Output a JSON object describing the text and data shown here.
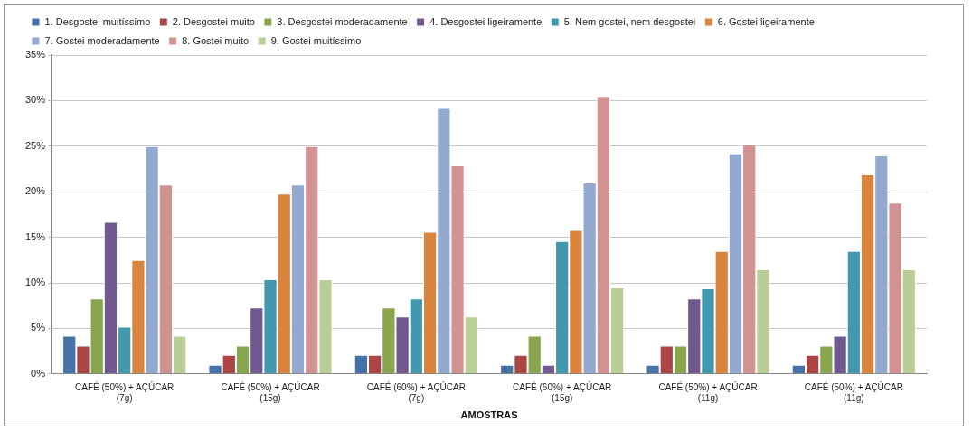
{
  "chart_data": {
    "type": "bar",
    "xlabel": "AMOSTRAS",
    "categories": [
      "CAFÉ (50%) + AÇÚCAR\n(7g)",
      "CAFÉ (50%) + AÇÚCAR\n(15g)",
      "CAFÉ (60%) + AÇÚCAR\n(7g)",
      "CAFÉ (60%) + AÇÚCAR\n(15g)",
      "CAFÉ (50%) + AÇÚCAR\n(11g)",
      "CAFÉ (50%) + AÇÚCAR\n(11g)"
    ],
    "series": [
      {
        "name": "1. Desgostei muitíssimo",
        "color": "#4572a7",
        "values": [
          4.2,
          1.0,
          2.1,
          1.0,
          1.0,
          1.0
        ]
      },
      {
        "name": "2. Desgostei muito",
        "color": "#aa4643",
        "values": [
          3.1,
          2.1,
          2.1,
          2.1,
          3.1,
          2.1
        ]
      },
      {
        "name": "3. Desgostei moderadamente",
        "color": "#89a54e",
        "values": [
          8.3,
          3.1,
          7.3,
          4.2,
          3.1,
          3.1
        ]
      },
      {
        "name": "4. Desgostei ligeiramente",
        "color": "#71588f",
        "values": [
          16.7,
          7.3,
          6.3,
          1.0,
          8.3,
          4.2
        ]
      },
      {
        "name": "5. Nem gostei, nem desgostei",
        "color": "#4198af",
        "values": [
          5.2,
          10.4,
          8.3,
          14.6,
          9.4,
          13.5
        ]
      },
      {
        "name": "6. Gostei ligeiramente",
        "color": "#db843d",
        "values": [
          12.5,
          19.8,
          15.6,
          15.8,
          13.5,
          21.9
        ]
      },
      {
        "name": "7. Gostei moderadamente",
        "color": "#93a9cf",
        "values": [
          25.0,
          20.8,
          29.2,
          21.0,
          24.2,
          24.0
        ]
      },
      {
        "name": "8. Gostei muito",
        "color": "#d19392",
        "values": [
          20.8,
          25.0,
          22.9,
          30.5,
          25.2,
          18.8
        ]
      },
      {
        "name": "9. Gostei muitíssimo",
        "color": "#b9cd96",
        "values": [
          4.2,
          10.4,
          6.3,
          9.5,
          11.5,
          11.5
        ]
      }
    ],
    "ylim": [
      0,
      35
    ],
    "yticks": [
      {
        "value": 0,
        "label": "0%"
      },
      {
        "value": 5,
        "label": "5%"
      },
      {
        "value": 10,
        "label": "10%"
      },
      {
        "value": 15,
        "label": "15%"
      },
      {
        "value": 20,
        "label": "20%"
      },
      {
        "value": 25,
        "label": "25%"
      },
      {
        "value": 30,
        "label": "30%"
      },
      {
        "value": 35,
        "label": "35%"
      }
    ],
    "grid": "y",
    "legend": "top"
  }
}
